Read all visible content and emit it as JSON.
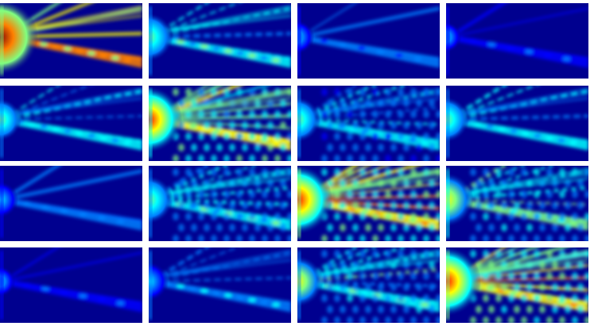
{
  "colormap": {
    "name": "jet",
    "background": "#00008f",
    "stops": [
      "#00008f",
      "#0000ff",
      "#0080ff",
      "#00ffff",
      "#80ff80",
      "#ffff00",
      "#ff8000",
      "#ff0000",
      "#800000"
    ]
  },
  "grid": {
    "rows": 4,
    "cols": 4
  },
  "panels": [
    {
      "row": 0,
      "col": 0,
      "intensity": 1.0,
      "pattern": "near-field-hotspot"
    },
    {
      "row": 0,
      "col": 1,
      "intensity": 0.55,
      "pattern": "beam-with-sidelobes"
    },
    {
      "row": 0,
      "col": 2,
      "intensity": 0.3,
      "pattern": "faint-beam"
    },
    {
      "row": 0,
      "col": 3,
      "intensity": 0.25,
      "pattern": "faint-beam"
    },
    {
      "row": 1,
      "col": 0,
      "intensity": 0.45,
      "pattern": "beam-with-sidelobes"
    },
    {
      "row": 1,
      "col": 1,
      "intensity": 0.85,
      "pattern": "wide-fan"
    },
    {
      "row": 1,
      "col": 2,
      "intensity": 0.5,
      "pattern": "interference"
    },
    {
      "row": 1,
      "col": 3,
      "intensity": 0.5,
      "pattern": "beam-with-sidelobes"
    },
    {
      "row": 2,
      "col": 0,
      "intensity": 0.35,
      "pattern": "faint-beam"
    },
    {
      "row": 2,
      "col": 1,
      "intensity": 0.55,
      "pattern": "interference"
    },
    {
      "row": 2,
      "col": 2,
      "intensity": 0.9,
      "pattern": "wide-fan"
    },
    {
      "row": 2,
      "col": 3,
      "intensity": 0.65,
      "pattern": "interference"
    },
    {
      "row": 3,
      "col": 0,
      "intensity": 0.25,
      "pattern": "faint-beam"
    },
    {
      "row": 3,
      "col": 1,
      "intensity": 0.4,
      "pattern": "beam-with-sidelobes"
    },
    {
      "row": 3,
      "col": 2,
      "intensity": 0.6,
      "pattern": "interference"
    },
    {
      "row": 3,
      "col": 3,
      "intensity": 0.9,
      "pattern": "wide-fan"
    }
  ]
}
